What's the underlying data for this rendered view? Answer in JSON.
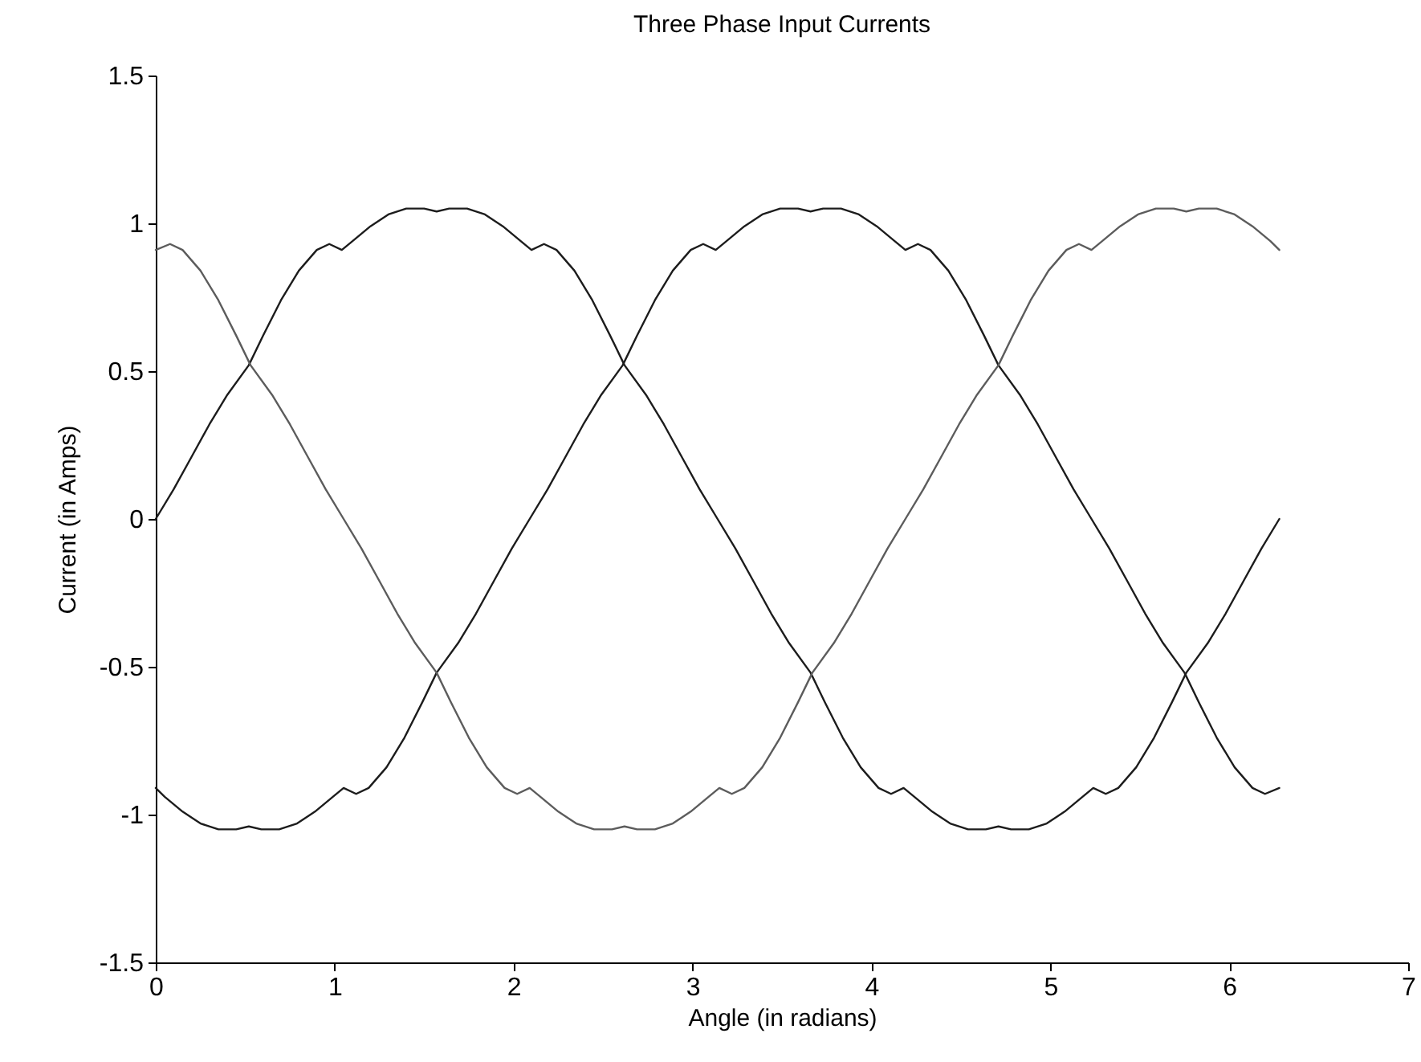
{
  "chart_data": {
    "type": "line",
    "title": "Three Phase Input Currents",
    "xlabel": "Angle (in radians)",
    "ylabel": "Current (in Amps)",
    "xlim": [
      0,
      7
    ],
    "xticks": [
      0,
      1,
      2,
      3,
      4,
      5,
      6,
      7
    ],
    "ylim": [
      -1.5,
      1.5
    ],
    "yticks": [
      -1.5,
      -1,
      -0.5,
      0,
      0.5,
      1,
      1.5
    ],
    "grid": false,
    "line_style": "solid",
    "series": [
      {
        "color": "#1c1c1c",
        "x": [
          0,
          0.1,
          0.2,
          0.3,
          0.4,
          0.52,
          0.6,
          0.7,
          0.8,
          0.9,
          0.97,
          1.04,
          1.1,
          1.2,
          1.3,
          1.4,
          1.5,
          1.57,
          1.64,
          1.74,
          1.84,
          1.94,
          2.04,
          2.1,
          2.17,
          2.24,
          2.34,
          2.44,
          2.54,
          2.62,
          2.74,
          2.84,
          2.94,
          3.04,
          3.14,
          3.24,
          3.34,
          3.44,
          3.54,
          3.66,
          3.74,
          3.84,
          3.94,
          4.04,
          4.11,
          4.18,
          4.24,
          4.34,
          4.44,
          4.54,
          4.64,
          4.71,
          4.78,
          4.88,
          4.98,
          5.08,
          5.18,
          5.24,
          5.31,
          5.38,
          5.48,
          5.58,
          5.68,
          5.76,
          5.88,
          5.98,
          6.08,
          6.18,
          6.28
        ],
        "values": [
          0,
          0.1,
          0.21,
          0.32,
          0.42,
          0.52,
          0.62,
          0.74,
          0.84,
          0.91,
          0.93,
          0.91,
          0.94,
          0.99,
          1.03,
          1.05,
          1.05,
          1.04,
          1.05,
          1.05,
          1.03,
          0.99,
          0.94,
          0.91,
          0.93,
          0.91,
          0.84,
          0.74,
          0.62,
          0.52,
          0.42,
          0.32,
          0.21,
          0.1,
          0,
          -0.1,
          -0.21,
          -0.32,
          -0.42,
          -0.52,
          -0.62,
          -0.74,
          -0.84,
          -0.91,
          -0.93,
          -0.91,
          -0.94,
          -0.99,
          -1.03,
          -1.05,
          -1.05,
          -1.04,
          -1.05,
          -1.05,
          -1.03,
          -0.99,
          -0.94,
          -0.91,
          -0.93,
          -0.91,
          -0.84,
          -0.74,
          -0.62,
          -0.52,
          -0.42,
          -0.32,
          -0.21,
          -0.1,
          0
        ]
      },
      {
        "color": "#1c1c1c",
        "x": [
          0,
          0.05,
          0.15,
          0.25,
          0.35,
          0.45,
          0.52,
          0.59,
          0.69,
          0.79,
          0.89,
          0.99,
          1.05,
          1.12,
          1.19,
          1.29,
          1.39,
          1.49,
          1.57,
          1.69,
          1.79,
          1.89,
          1.99,
          2.09,
          2.19,
          2.29,
          2.39,
          2.49,
          2.61,
          2.69,
          2.79,
          2.89,
          2.99,
          3.06,
          3.13,
          3.19,
          3.29,
          3.39,
          3.49,
          3.59,
          3.66,
          3.73,
          3.83,
          3.93,
          4.03,
          4.13,
          4.19,
          4.26,
          4.33,
          4.43,
          4.53,
          4.63,
          4.71,
          4.83,
          4.93,
          5.03,
          5.13,
          5.23,
          5.33,
          5.43,
          5.53,
          5.63,
          5.75,
          5.83,
          5.93,
          6.03,
          6.13,
          6.2,
          6.28
        ],
        "values": [
          -0.91,
          -0.94,
          -0.99,
          -1.03,
          -1.05,
          -1.05,
          -1.04,
          -1.05,
          -1.05,
          -1.03,
          -0.99,
          -0.94,
          -0.91,
          -0.93,
          -0.91,
          -0.84,
          -0.74,
          -0.62,
          -0.52,
          -0.42,
          -0.32,
          -0.21,
          -0.1,
          0,
          0.1,
          0.21,
          0.32,
          0.42,
          0.52,
          0.62,
          0.74,
          0.84,
          0.91,
          0.93,
          0.91,
          0.94,
          0.99,
          1.03,
          1.05,
          1.05,
          1.04,
          1.05,
          1.05,
          1.03,
          0.99,
          0.94,
          0.91,
          0.93,
          0.91,
          0.84,
          0.74,
          0.62,
          0.52,
          0.42,
          0.32,
          0.21,
          0.1,
          0,
          -0.1,
          -0.21,
          -0.32,
          -0.42,
          -0.52,
          -0.62,
          -0.74,
          -0.84,
          -0.91,
          -0.93,
          -0.91
        ]
      },
      {
        "color": "#5c5c5c",
        "x": [
          0,
          0.08,
          0.15,
          0.25,
          0.35,
          0.45,
          0.53,
          0.65,
          0.75,
          0.85,
          0.95,
          1.05,
          1.15,
          1.25,
          1.35,
          1.45,
          1.57,
          1.65,
          1.75,
          1.85,
          1.95,
          2.02,
          2.09,
          2.15,
          2.25,
          2.35,
          2.45,
          2.55,
          2.62,
          2.69,
          2.79,
          2.89,
          2.99,
          3.09,
          3.15,
          3.22,
          3.29,
          3.39,
          3.49,
          3.59,
          3.67,
          3.79,
          3.89,
          3.99,
          4.09,
          4.19,
          4.29,
          4.39,
          4.49,
          4.59,
          4.71,
          4.79,
          4.89,
          4.99,
          5.09,
          5.16,
          5.23,
          5.29,
          5.39,
          5.49,
          5.59,
          5.69,
          5.76,
          5.83,
          5.93,
          6.03,
          6.13,
          6.23,
          6.28
        ],
        "values": [
          0.91,
          0.93,
          0.91,
          0.84,
          0.74,
          0.62,
          0.52,
          0.42,
          0.32,
          0.21,
          0.1,
          0,
          -0.1,
          -0.21,
          -0.32,
          -0.42,
          -0.52,
          -0.62,
          -0.74,
          -0.84,
          -0.91,
          -0.93,
          -0.91,
          -0.94,
          -0.99,
          -1.03,
          -1.05,
          -1.05,
          -1.04,
          -1.05,
          -1.05,
          -1.03,
          -0.99,
          -0.94,
          -0.91,
          -0.93,
          -0.91,
          -0.84,
          -0.74,
          -0.62,
          -0.52,
          -0.42,
          -0.32,
          -0.21,
          -0.1,
          0,
          0.1,
          0.21,
          0.32,
          0.42,
          0.52,
          0.62,
          0.74,
          0.84,
          0.91,
          0.93,
          0.91,
          0.94,
          0.99,
          1.03,
          1.05,
          1.05,
          1.04,
          1.05,
          1.05,
          1.03,
          0.99,
          0.94,
          0.91
        ]
      }
    ]
  }
}
